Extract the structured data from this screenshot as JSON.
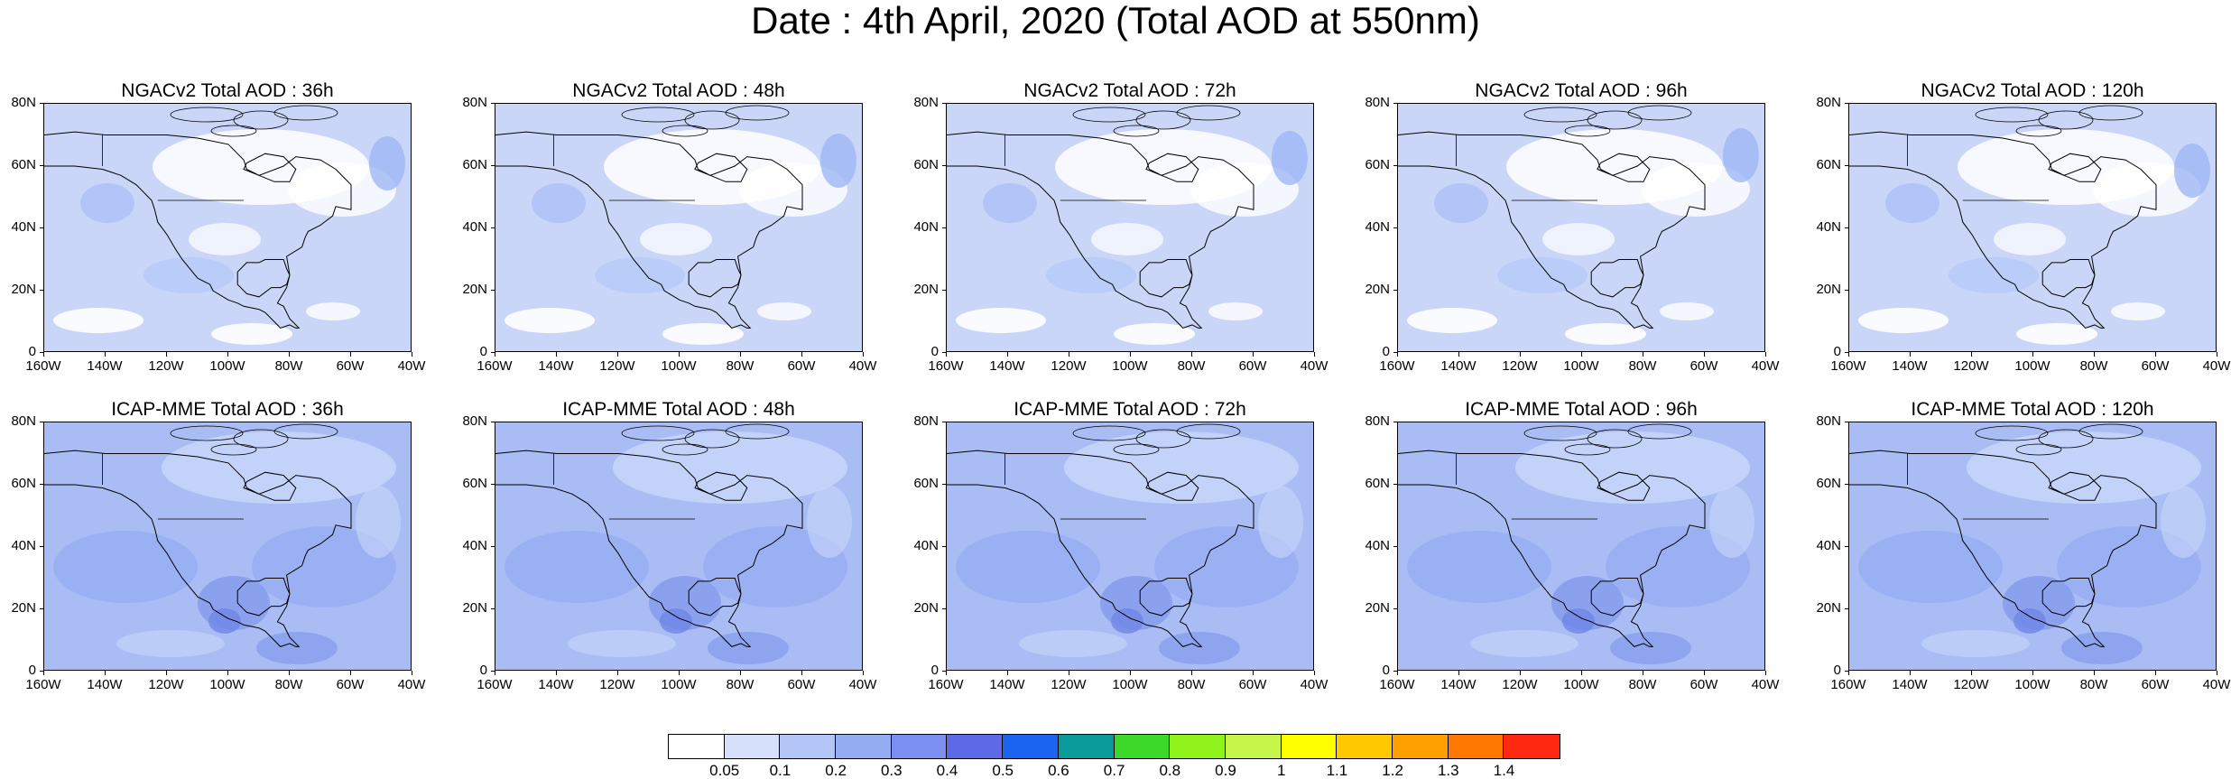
{
  "title": "Date : 4th April, 2020 (Total AOD at 550nm)",
  "axes": {
    "y_ticks": [
      "80N",
      "60N",
      "40N",
      "20N",
      "0"
    ],
    "x_ticks": [
      "160W",
      "140W",
      "120W",
      "100W",
      "80W",
      "60W",
      "40W"
    ]
  },
  "panels": [
    {
      "title": "NGACv2 Total AOD : 36h",
      "model": "NGACv2",
      "lead": "36h"
    },
    {
      "title": "NGACv2 Total AOD : 48h",
      "model": "NGACv2",
      "lead": "48h"
    },
    {
      "title": "NGACv2 Total AOD : 72h",
      "model": "NGACv2",
      "lead": "72h"
    },
    {
      "title": "NGACv2 Total AOD : 96h",
      "model": "NGACv2",
      "lead": "96h"
    },
    {
      "title": "NGACv2 Total AOD : 120h",
      "model": "NGACv2",
      "lead": "120h"
    },
    {
      "title": "ICAP-MME Total AOD : 36h",
      "model": "ICAP-MME",
      "lead": "36h"
    },
    {
      "title": "ICAP-MME Total AOD : 48h",
      "model": "ICAP-MME",
      "lead": "48h"
    },
    {
      "title": "ICAP-MME Total AOD : 72h",
      "model": "ICAP-MME",
      "lead": "72h"
    },
    {
      "title": "ICAP-MME Total AOD : 96h",
      "model": "ICAP-MME",
      "lead": "96h"
    },
    {
      "title": "ICAP-MME Total AOD : 120h",
      "model": "ICAP-MME",
      "lead": "120h"
    }
  ],
  "colorbar": {
    "labels": [
      "0.05",
      "0.1",
      "0.2",
      "0.3",
      "0.4",
      "0.5",
      "0.6",
      "0.7",
      "0.8",
      "0.9",
      "1",
      "1.1",
      "1.2",
      "1.3",
      "1.4"
    ],
    "colors": [
      "#ffffff",
      "#d6e0fb",
      "#b4c6f7",
      "#95adf3",
      "#7b8ff0",
      "#5c6ae8",
      "#1a64f0",
      "#0a9a9a",
      "#3cd82a",
      "#8ff21a",
      "#c8f54a",
      "#ffff00",
      "#ffc800",
      "#ffa000",
      "#ff7800",
      "#ff2810"
    ]
  },
  "colors": {
    "ngac_base": "#c9d6f8",
    "ngac_light": "#ffffff",
    "icap_base": "#a9bdf4",
    "icap_mid": "#8fa6f0",
    "icap_dark": "#6f86e6",
    "coast": "#000000"
  }
}
